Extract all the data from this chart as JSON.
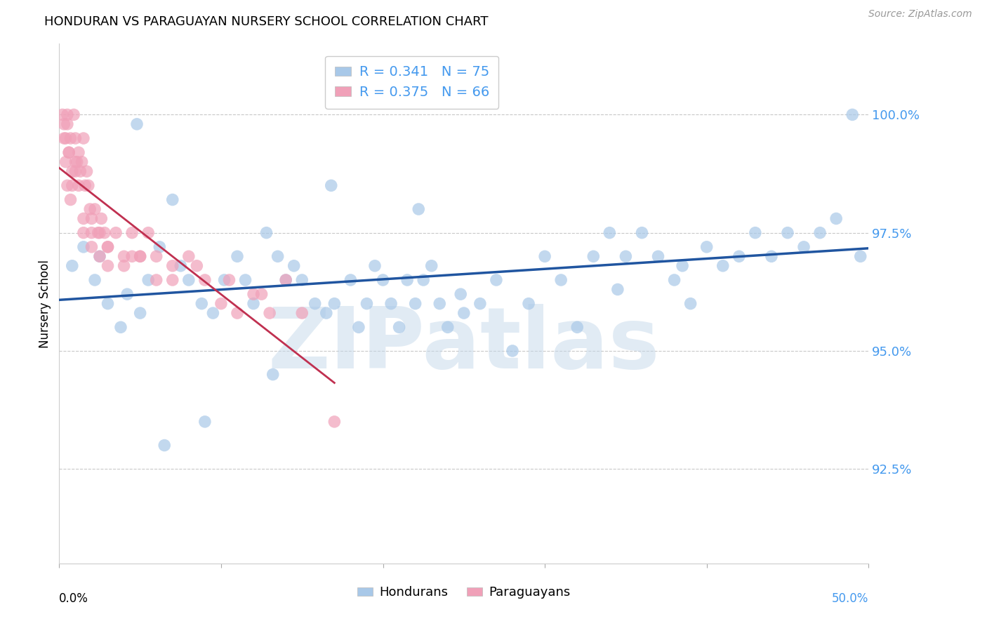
{
  "title": "HONDURAN VS PARAGUAYAN NURSERY SCHOOL CORRELATION CHART",
  "source": "Source: ZipAtlas.com",
  "ylabel": "Nursery School",
  "yticks": [
    92.5,
    95.0,
    97.5,
    100.0
  ],
  "ytick_labels": [
    "92.5%",
    "95.0%",
    "97.5%",
    "100.0%"
  ],
  "xlim": [
    0.0,
    50.0
  ],
  "ylim": [
    90.5,
    101.5
  ],
  "blue_R": 0.341,
  "blue_N": 75,
  "pink_R": 0.375,
  "pink_N": 66,
  "blue_color": "#a8c8e8",
  "blue_line_color": "#2055a0",
  "pink_color": "#f0a0b8",
  "pink_line_color": "#c03050",
  "background_color": "#ffffff",
  "grid_color": "#c8c8c8",
  "watermark": "ZIPatlas",
  "ytick_color": "#4499ee",
  "title_fontsize": 13,
  "source_fontsize": 10,
  "blue_x": [
    0.8,
    1.5,
    2.2,
    2.5,
    3.0,
    3.8,
    4.2,
    5.0,
    5.5,
    6.2,
    7.0,
    7.5,
    8.0,
    8.8,
    9.5,
    10.2,
    11.0,
    11.5,
    12.0,
    12.8,
    13.5,
    14.0,
    14.5,
    15.0,
    15.8,
    16.5,
    17.0,
    18.0,
    18.5,
    19.0,
    19.5,
    20.0,
    20.5,
    21.0,
    21.5,
    22.0,
    22.5,
    23.0,
    23.5,
    24.0,
    25.0,
    26.0,
    27.0,
    28.0,
    29.0,
    30.0,
    31.0,
    32.0,
    33.0,
    34.0,
    35.0,
    36.0,
    37.0,
    38.0,
    39.0,
    40.0,
    41.0,
    42.0,
    43.0,
    44.0,
    45.0,
    46.0,
    47.0,
    48.0,
    49.0,
    49.5,
    34.5,
    22.2,
    16.8,
    4.8,
    9.0,
    13.2,
    24.8,
    38.5,
    6.5
  ],
  "blue_y": [
    96.8,
    97.2,
    96.5,
    97.0,
    96.0,
    95.5,
    96.2,
    95.8,
    96.5,
    97.2,
    98.2,
    96.8,
    96.5,
    96.0,
    95.8,
    96.5,
    97.0,
    96.5,
    96.0,
    97.5,
    97.0,
    96.5,
    96.8,
    96.5,
    96.0,
    95.8,
    96.0,
    96.5,
    95.5,
    96.0,
    96.8,
    96.5,
    96.0,
    95.5,
    96.5,
    96.0,
    96.5,
    96.8,
    96.0,
    95.5,
    95.8,
    96.0,
    96.5,
    95.0,
    96.0,
    97.0,
    96.5,
    95.5,
    97.0,
    97.5,
    97.0,
    97.5,
    97.0,
    96.5,
    96.0,
    97.2,
    96.8,
    97.0,
    97.5,
    97.0,
    97.5,
    97.2,
    97.5,
    97.8,
    100.0,
    97.0,
    96.3,
    98.0,
    98.5,
    99.8,
    93.5,
    94.5,
    96.2,
    96.8,
    93.0
  ],
  "pink_x": [
    0.2,
    0.3,
    0.4,
    0.5,
    0.6,
    0.7,
    0.8,
    0.9,
    1.0,
    1.1,
    1.2,
    1.3,
    1.4,
    1.5,
    1.6,
    1.7,
    1.8,
    1.9,
    2.0,
    2.2,
    2.4,
    2.6,
    2.8,
    3.0,
    3.5,
    4.0,
    4.5,
    5.0,
    5.5,
    6.0,
    7.0,
    8.0,
    9.0,
    10.0,
    11.0,
    12.0,
    13.0,
    14.0,
    0.5,
    0.6,
    0.8,
    1.0,
    1.2,
    1.5,
    2.0,
    2.5,
    3.0,
    4.0,
    5.0,
    7.0,
    0.3,
    0.4,
    0.5,
    0.7,
    1.0,
    1.5,
    2.0,
    2.5,
    3.0,
    4.5,
    6.0,
    8.5,
    10.5,
    12.5,
    15.0,
    17.0
  ],
  "pink_y": [
    100.0,
    99.8,
    99.5,
    99.8,
    99.2,
    99.5,
    98.8,
    100.0,
    99.5,
    99.0,
    99.2,
    98.8,
    99.0,
    99.5,
    98.5,
    98.8,
    98.5,
    98.0,
    97.8,
    98.0,
    97.5,
    97.8,
    97.5,
    97.2,
    97.5,
    97.0,
    97.5,
    97.0,
    97.5,
    97.0,
    96.5,
    97.0,
    96.5,
    96.0,
    95.8,
    96.2,
    95.8,
    96.5,
    100.0,
    99.2,
    98.5,
    99.0,
    98.5,
    97.8,
    97.5,
    97.0,
    97.2,
    96.8,
    97.0,
    96.8,
    99.5,
    99.0,
    98.5,
    98.2,
    98.8,
    97.5,
    97.2,
    97.5,
    96.8,
    97.0,
    96.5,
    96.8,
    96.5,
    96.2,
    95.8,
    93.5
  ]
}
